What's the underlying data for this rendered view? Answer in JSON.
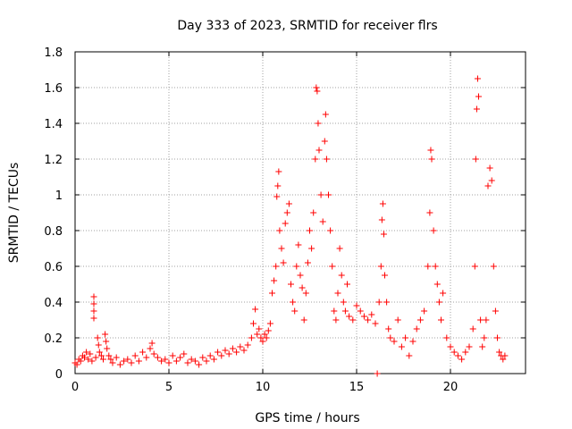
{
  "chart_data": {
    "type": "scatter",
    "title": "Day 333 of 2023, SRMTID for receiver flrs",
    "xlabel": "GPS time / hours",
    "ylabel": "SRMTID / TECUs",
    "xlim": [
      0,
      24
    ],
    "ylim": [
      0,
      1.8
    ],
    "xticks": [
      "0",
      "5",
      "10",
      "15",
      "20"
    ],
    "xtick_values": [
      0,
      5,
      10,
      15,
      20
    ],
    "yticks": [
      "0",
      "0.2",
      "0.4",
      "0.6",
      "0.8",
      "1",
      "1.2",
      "1.4",
      "1.6",
      "1.8"
    ],
    "ytick_values": [
      0,
      0.2,
      0.4,
      0.6,
      0.8,
      1.0,
      1.2,
      1.4,
      1.6,
      1.8
    ],
    "grid": true,
    "marker": "+",
    "color": "#ff0000",
    "series": [
      {
        "name": "SRMTID",
        "points": [
          [
            0.0,
            0.06
          ],
          [
            0.1,
            0.05
          ],
          [
            0.2,
            0.08
          ],
          [
            0.3,
            0.07
          ],
          [
            0.4,
            0.1
          ],
          [
            0.5,
            0.09
          ],
          [
            0.6,
            0.12
          ],
          [
            0.7,
            0.08
          ],
          [
            0.8,
            0.11
          ],
          [
            0.9,
            0.07
          ],
          [
            1.0,
            0.43
          ],
          [
            1.0,
            0.39
          ],
          [
            1.0,
            0.35
          ],
          [
            1.0,
            0.31
          ],
          [
            1.1,
            0.09
          ],
          [
            1.2,
            0.2
          ],
          [
            1.25,
            0.16
          ],
          [
            1.3,
            0.12
          ],
          [
            1.4,
            0.1
          ],
          [
            1.5,
            0.08
          ],
          [
            1.6,
            0.22
          ],
          [
            1.65,
            0.18
          ],
          [
            1.7,
            0.14
          ],
          [
            1.8,
            0.1
          ],
          [
            1.9,
            0.08
          ],
          [
            2.0,
            0.06
          ],
          [
            2.2,
            0.09
          ],
          [
            2.4,
            0.05
          ],
          [
            2.6,
            0.07
          ],
          [
            2.8,
            0.08
          ],
          [
            3.0,
            0.06
          ],
          [
            3.2,
            0.1
          ],
          [
            3.4,
            0.07
          ],
          [
            3.6,
            0.12
          ],
          [
            3.8,
            0.09
          ],
          [
            4.0,
            0.14
          ],
          [
            4.1,
            0.17
          ],
          [
            4.2,
            0.11
          ],
          [
            4.4,
            0.09
          ],
          [
            4.6,
            0.07
          ],
          [
            4.8,
            0.08
          ],
          [
            5.0,
            0.06
          ],
          [
            5.2,
            0.1
          ],
          [
            5.4,
            0.07
          ],
          [
            5.6,
            0.09
          ],
          [
            5.8,
            0.11
          ],
          [
            6.0,
            0.06
          ],
          [
            6.2,
            0.08
          ],
          [
            6.4,
            0.07
          ],
          [
            6.6,
            0.05
          ],
          [
            6.8,
            0.09
          ],
          [
            7.0,
            0.07
          ],
          [
            7.2,
            0.1
          ],
          [
            7.4,
            0.08
          ],
          [
            7.6,
            0.12
          ],
          [
            7.8,
            0.1
          ],
          [
            8.0,
            0.13
          ],
          [
            8.2,
            0.11
          ],
          [
            8.4,
            0.14
          ],
          [
            8.6,
            0.12
          ],
          [
            8.8,
            0.15
          ],
          [
            9.0,
            0.13
          ],
          [
            9.2,
            0.16
          ],
          [
            9.4,
            0.2
          ],
          [
            9.5,
            0.28
          ],
          [
            9.6,
            0.36
          ],
          [
            9.7,
            0.22
          ],
          [
            9.8,
            0.25
          ],
          [
            9.9,
            0.2
          ],
          [
            10.0,
            0.18
          ],
          [
            10.1,
            0.22
          ],
          [
            10.2,
            0.2
          ],
          [
            10.3,
            0.24
          ],
          [
            10.4,
            0.28
          ],
          [
            10.5,
            0.45
          ],
          [
            10.6,
            0.52
          ],
          [
            10.7,
            0.6
          ],
          [
            10.75,
            0.99
          ],
          [
            10.8,
            1.05
          ],
          [
            10.85,
            1.13
          ],
          [
            10.9,
            0.8
          ],
          [
            11.0,
            0.7
          ],
          [
            11.1,
            0.62
          ],
          [
            11.2,
            0.84
          ],
          [
            11.3,
            0.9
          ],
          [
            11.4,
            0.95
          ],
          [
            11.5,
            0.5
          ],
          [
            11.6,
            0.4
          ],
          [
            11.7,
            0.35
          ],
          [
            11.8,
            0.6
          ],
          [
            11.9,
            0.72
          ],
          [
            12.0,
            0.55
          ],
          [
            12.1,
            0.48
          ],
          [
            12.2,
            0.3
          ],
          [
            12.3,
            0.45
          ],
          [
            12.4,
            0.62
          ],
          [
            12.5,
            0.8
          ],
          [
            12.6,
            0.7
          ],
          [
            12.7,
            0.9
          ],
          [
            12.8,
            1.2
          ],
          [
            12.85,
            1.6
          ],
          [
            12.9,
            1.58
          ],
          [
            12.95,
            1.4
          ],
          [
            13.0,
            1.25
          ],
          [
            13.1,
            1.0
          ],
          [
            13.2,
            0.85
          ],
          [
            13.3,
            1.3
          ],
          [
            13.35,
            1.45
          ],
          [
            13.4,
            1.2
          ],
          [
            13.5,
            1.0
          ],
          [
            13.6,
            0.8
          ],
          [
            13.7,
            0.6
          ],
          [
            13.8,
            0.35
          ],
          [
            13.9,
            0.3
          ],
          [
            14.0,
            0.45
          ],
          [
            14.1,
            0.7
          ],
          [
            14.2,
            0.55
          ],
          [
            14.3,
            0.4
          ],
          [
            14.4,
            0.35
          ],
          [
            14.5,
            0.5
          ],
          [
            14.6,
            0.32
          ],
          [
            14.8,
            0.3
          ],
          [
            15.0,
            0.38
          ],
          [
            15.2,
            0.35
          ],
          [
            15.4,
            0.32
          ],
          [
            15.6,
            0.3
          ],
          [
            15.8,
            0.33
          ],
          [
            16.0,
            0.28
          ],
          [
            16.1,
            0.0
          ],
          [
            16.2,
            0.4
          ],
          [
            16.3,
            0.6
          ],
          [
            16.35,
            0.86
          ],
          [
            16.4,
            0.95
          ],
          [
            16.45,
            0.78
          ],
          [
            16.5,
            0.55
          ],
          [
            16.6,
            0.4
          ],
          [
            16.7,
            0.25
          ],
          [
            16.8,
            0.2
          ],
          [
            17.0,
            0.18
          ],
          [
            17.2,
            0.3
          ],
          [
            17.4,
            0.15
          ],
          [
            17.6,
            0.2
          ],
          [
            17.8,
            0.1
          ],
          [
            18.0,
            0.18
          ],
          [
            18.2,
            0.25
          ],
          [
            18.4,
            0.3
          ],
          [
            18.6,
            0.35
          ],
          [
            18.8,
            0.6
          ],
          [
            18.9,
            0.9
          ],
          [
            18.95,
            1.25
          ],
          [
            19.0,
            1.2
          ],
          [
            19.1,
            0.8
          ],
          [
            19.2,
            0.6
          ],
          [
            19.3,
            0.5
          ],
          [
            19.4,
            0.4
          ],
          [
            19.5,
            0.3
          ],
          [
            19.6,
            0.45
          ],
          [
            19.8,
            0.2
          ],
          [
            20.0,
            0.15
          ],
          [
            20.2,
            0.12
          ],
          [
            20.4,
            0.1
          ],
          [
            20.6,
            0.08
          ],
          [
            20.8,
            0.12
          ],
          [
            21.0,
            0.15
          ],
          [
            21.2,
            0.25
          ],
          [
            21.3,
            0.6
          ],
          [
            21.35,
            1.2
          ],
          [
            21.4,
            1.48
          ],
          [
            21.45,
            1.65
          ],
          [
            21.5,
            1.55
          ],
          [
            21.6,
            0.3
          ],
          [
            21.7,
            0.15
          ],
          [
            21.8,
            0.2
          ],
          [
            21.9,
            0.3
          ],
          [
            22.0,
            1.05
          ],
          [
            22.1,
            1.15
          ],
          [
            22.2,
            1.08
          ],
          [
            22.3,
            0.6
          ],
          [
            22.4,
            0.35
          ],
          [
            22.5,
            0.2
          ],
          [
            22.6,
            0.12
          ],
          [
            22.7,
            0.1
          ],
          [
            22.8,
            0.08
          ],
          [
            22.9,
            0.1
          ]
        ]
      }
    ]
  }
}
